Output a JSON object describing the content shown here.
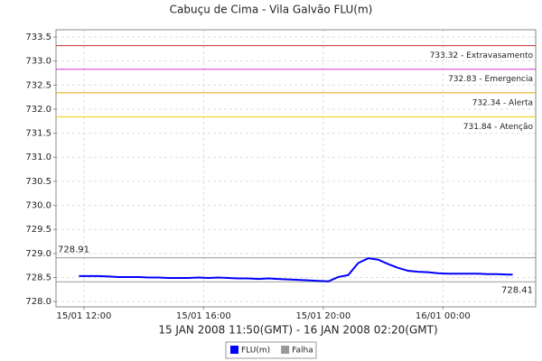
{
  "chart_data": {
    "type": "line",
    "title": "Cabuçu de Cima - Vila Galvão FLU(m)",
    "x_label": "15 JAN 2008 11:50(GMT) - 16 JAN 2008 02:20(GMT)",
    "x": [
      "15/01 11:50",
      "15/01 12:10",
      "15/01 12:30",
      "15/01 12:50",
      "15/01 13:10",
      "15/01 13:30",
      "15/01 13:50",
      "15/01 14:10",
      "15/01 14:30",
      "15/01 14:50",
      "15/01 15:10",
      "15/01 15:30",
      "15/01 15:50",
      "15/01 16:10",
      "15/01 16:30",
      "15/01 16:50",
      "15/01 17:10",
      "15/01 17:30",
      "15/01 17:50",
      "15/01 18:10",
      "15/01 18:30",
      "15/01 18:50",
      "15/01 19:10",
      "15/01 19:30",
      "15/01 19:50",
      "15/01 20:10",
      "15/01 20:30",
      "15/01 20:50",
      "15/01 21:10",
      "15/01 21:30",
      "15/01 21:50",
      "15/01 22:10",
      "15/01 22:30",
      "15/01 22:50",
      "15/01 23:10",
      "15/01 23:30",
      "15/01 23:50",
      "16/01 00:10",
      "16/01 00:30",
      "16/01 00:50",
      "16/01 01:10",
      "16/01 01:30",
      "16/01 01:50",
      "16/01 02:10",
      "16/01 02:20"
    ],
    "series": [
      {
        "name": "FLU(m)",
        "color": "#0000ff",
        "values": [
          728.53,
          728.53,
          728.53,
          728.52,
          728.51,
          728.51,
          728.51,
          728.5,
          728.5,
          728.49,
          728.49,
          728.49,
          728.5,
          728.49,
          728.5,
          728.49,
          728.48,
          728.48,
          728.47,
          728.48,
          728.47,
          728.46,
          728.45,
          728.44,
          728.43,
          728.42,
          728.51,
          728.55,
          728.8,
          728.9,
          728.87,
          728.78,
          728.7,
          728.64,
          728.62,
          728.61,
          728.59,
          728.58,
          728.58,
          728.58,
          728.58,
          728.57,
          728.57,
          728.56,
          728.56
        ]
      }
    ],
    "falha": {
      "name": "Falha",
      "color": "#999999",
      "values": [
        728.91,
        728.41
      ]
    },
    "thresholds": [
      {
        "value": 733.32,
        "label": "733.32 - Extravasamento",
        "color": "#cc3333"
      },
      {
        "value": 732.83,
        "label": "732.83 - Emergencia",
        "color": "#cc33cc"
      },
      {
        "value": 732.34,
        "label": "732.34 - Alerta",
        "color": "#e6a800"
      },
      {
        "value": 731.84,
        "label": "731.84 - Atenção",
        "color": "#e6d200"
      }
    ],
    "xlim": [
      "15/01 11:04",
      "16/01 03:06"
    ],
    "xticks": [
      "15/01 12:00",
      "15/01 16:00",
      "15/01 20:00",
      "16/01 00:00"
    ],
    "ylim": [
      727.89,
      733.65
    ],
    "yticks": [
      {
        "value": 728,
        "label": "728.0"
      },
      728.5,
      {
        "value": 729,
        "label": "729.0"
      },
      729.5,
      {
        "value": 730,
        "label": "730.0"
      },
      730.5,
      {
        "value": 731,
        "label": "731.0"
      },
      731.5,
      {
        "value": 732,
        "label": "732.0"
      },
      732.5,
      {
        "value": 733,
        "label": "733.0"
      },
      733.5
    ],
    "grid": true
  }
}
